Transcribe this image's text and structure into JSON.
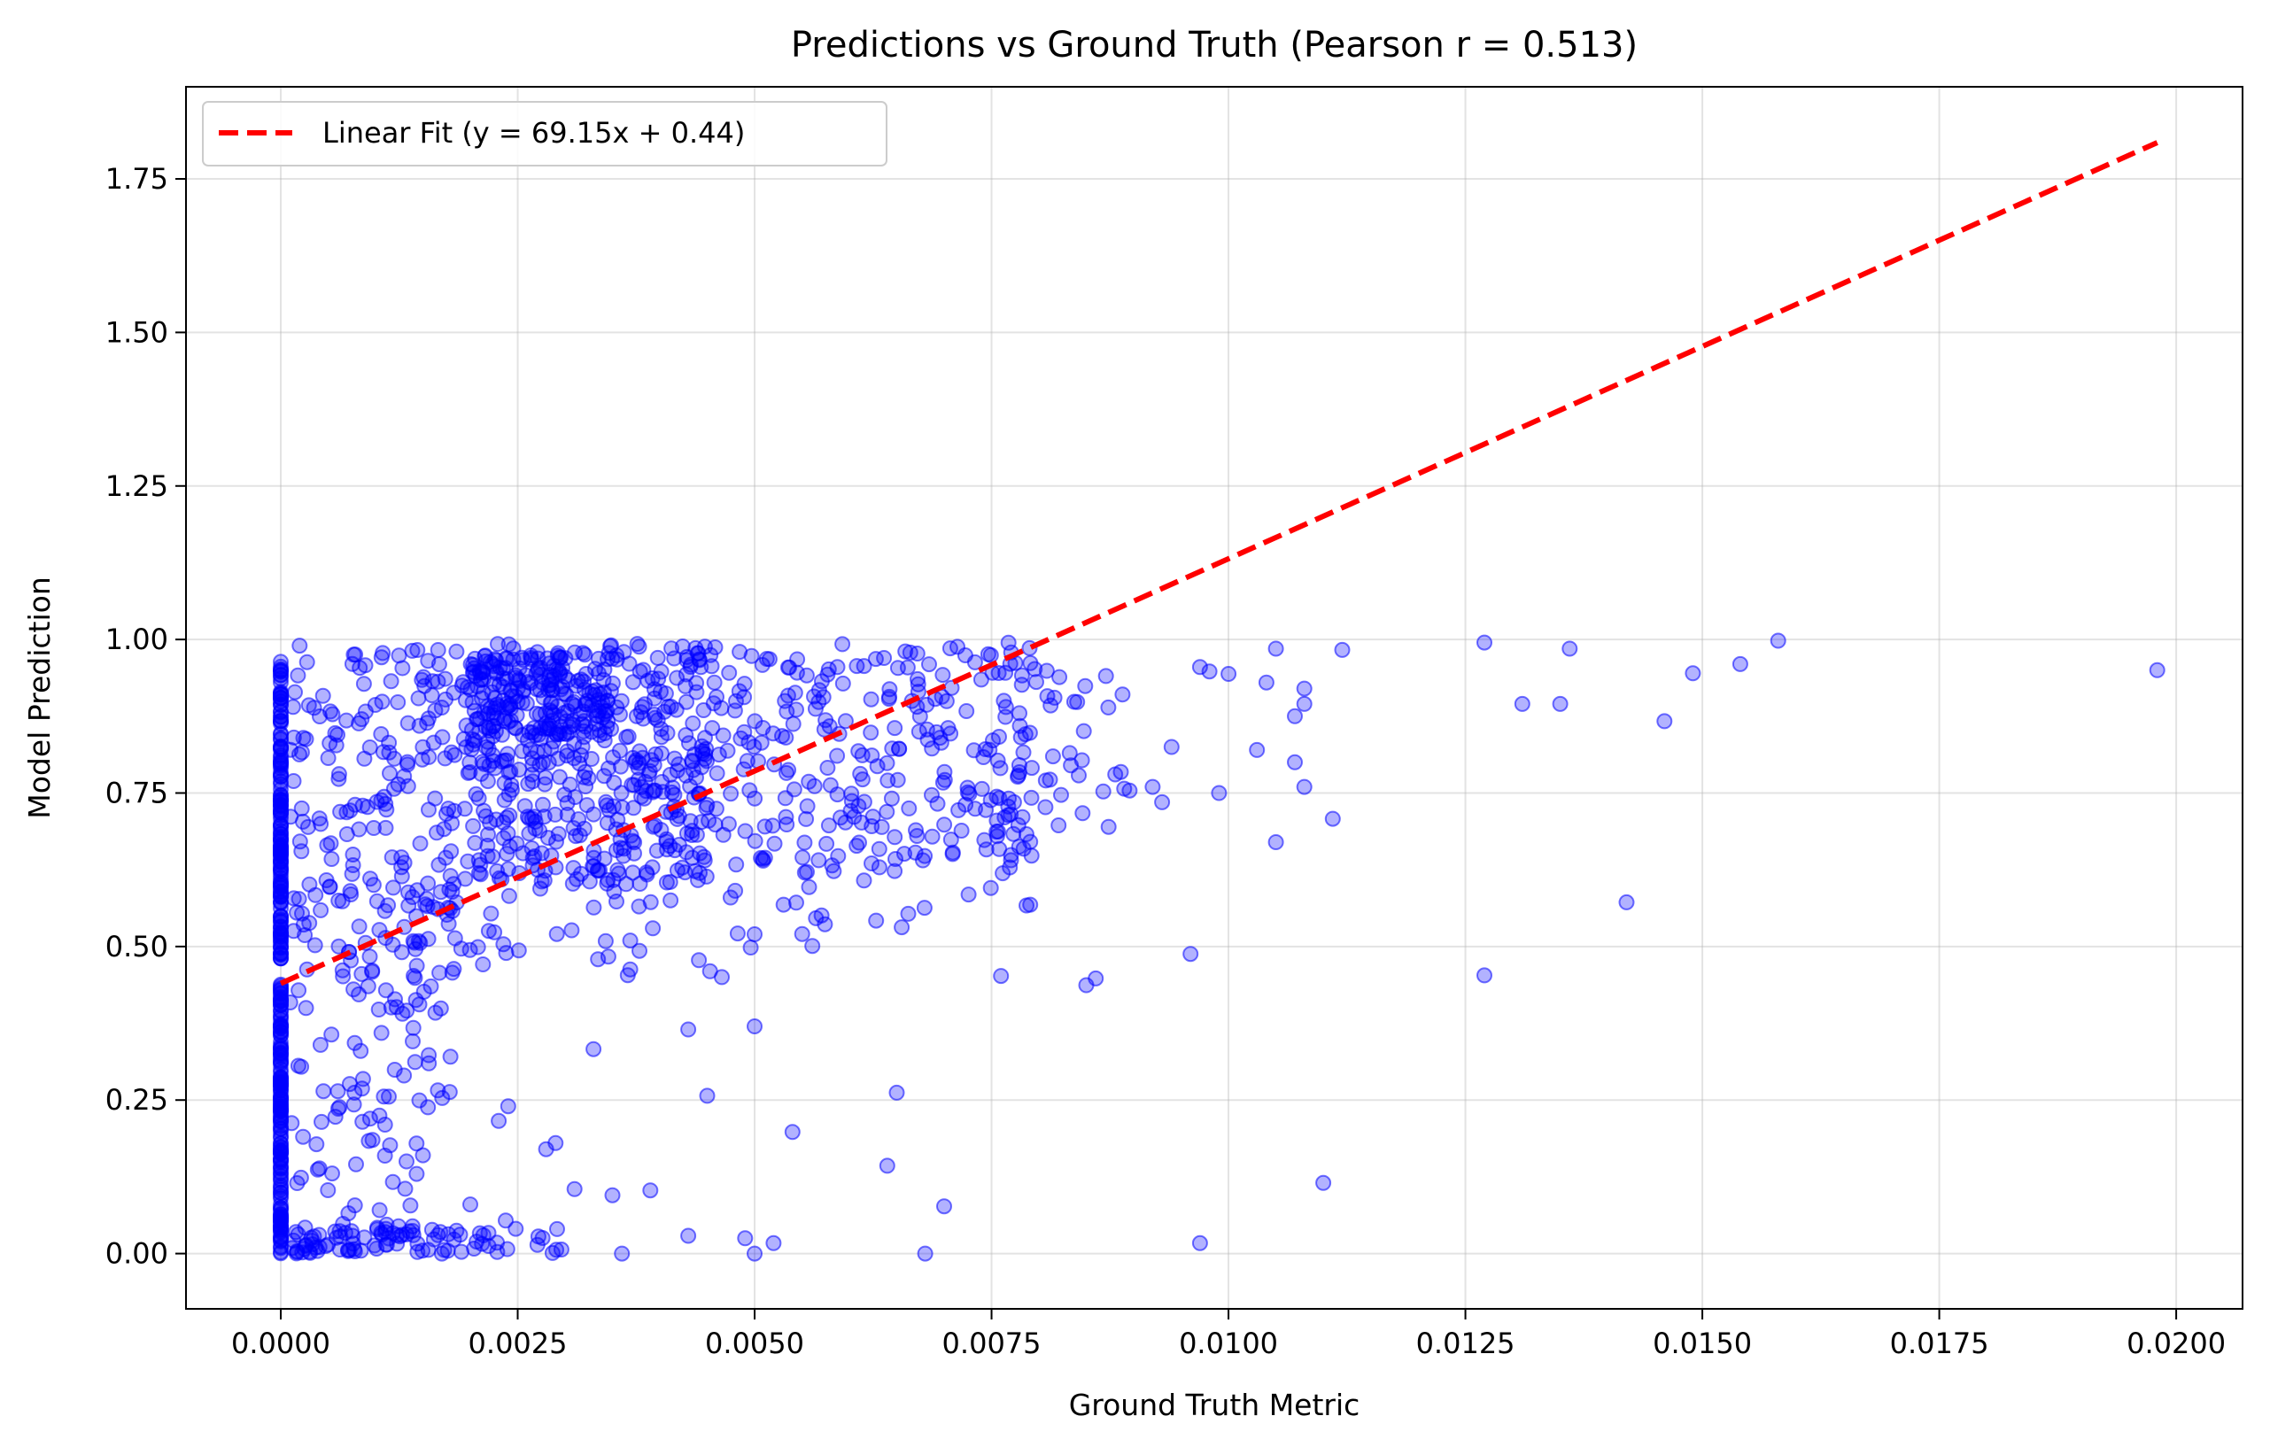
{
  "chart_data": {
    "type": "scatter",
    "title": "Predictions vs Ground Truth (Pearson r = 0.513)",
    "xlabel": "Ground Truth Metric",
    "ylabel": "Model Prediction",
    "xlim": [
      -0.001,
      0.0207
    ],
    "ylim": [
      -0.09,
      1.9
    ],
    "xticks": [
      0.0,
      0.0025,
      0.005,
      0.0075,
      0.01,
      0.0125,
      0.015,
      0.0175,
      0.02
    ],
    "xtick_labels": [
      "0.0000",
      "0.0025",
      "0.0050",
      "0.0075",
      "0.0100",
      "0.0125",
      "0.0150",
      "0.0175",
      "0.0200"
    ],
    "yticks": [
      0.0,
      0.25,
      0.5,
      0.75,
      1.0,
      1.25,
      1.5,
      1.75
    ],
    "ytick_labels": [
      "0.00",
      "0.25",
      "0.50",
      "0.75",
      "1.00",
      "1.25",
      "1.50",
      "1.75"
    ],
    "grid": true,
    "legend_position": "top-left",
    "fit": {
      "name": "Linear Fit (y = 69.15x + 0.44)",
      "slope": 69.15,
      "intercept": 0.44,
      "x_range": [
        0.0,
        0.0198
      ],
      "color": "#ff0000"
    },
    "scatter_color": "#0000ff",
    "outliers": [
      [
        0.0127,
        0.995
      ],
      [
        0.0131,
        0.895
      ],
      [
        0.0136,
        0.985
      ],
      [
        0.0135,
        0.895
      ],
      [
        0.0142,
        0.572
      ],
      [
        0.0146,
        0.867
      ],
      [
        0.0149,
        0.945
      ],
      [
        0.0154,
        0.96
      ],
      [
        0.0158,
        0.998
      ],
      [
        0.0198,
        0.95
      ],
      [
        0.0127,
        0.453
      ],
      [
        0.0112,
        0.983
      ],
      [
        0.0111,
        0.708
      ],
      [
        0.011,
        0.115
      ],
      [
        0.0097,
        0.017
      ],
      [
        0.0096,
        0.488
      ],
      [
        0.0085,
        0.437
      ],
      [
        0.0086,
        0.448
      ],
      [
        0.0076,
        0.452
      ],
      [
        0.0105,
        0.67
      ],
      [
        0.0103,
        0.82
      ],
      [
        0.0107,
        0.8
      ],
      [
        0.0108,
        0.76
      ],
      [
        0.0099,
        0.75
      ],
      [
        0.0092,
        0.76
      ],
      [
        0.0093,
        0.735
      ],
      [
        0.0089,
        0.757
      ],
      [
        0.0094,
        0.825
      ],
      [
        0.0097,
        0.955
      ],
      [
        0.0098,
        0.948
      ],
      [
        0.01,
        0.944
      ],
      [
        0.0104,
        0.93
      ],
      [
        0.0105,
        0.985
      ],
      [
        0.0107,
        0.875
      ],
      [
        0.0108,
        0.92
      ],
      [
        0.0108,
        0.895
      ],
      [
        0.0064,
        0.143
      ],
      [
        0.0065,
        0.262
      ],
      [
        0.007,
        0.077
      ],
      [
        0.0068,
        0.0
      ],
      [
        0.0054,
        0.198
      ],
      [
        0.0052,
        0.017
      ],
      [
        0.005,
        0.0
      ],
      [
        0.0049,
        0.025
      ],
      [
        0.0045,
        0.257
      ],
      [
        0.0043,
        0.029
      ],
      [
        0.0043,
        0.365
      ],
      [
        0.005,
        0.37
      ],
      [
        0.005,
        0.52
      ],
      [
        0.0036,
        0.0
      ],
      [
        0.0039,
        0.103
      ],
      [
        0.0035,
        0.095
      ],
      [
        0.0033,
        0.333
      ],
      [
        0.0029,
        0.18
      ],
      [
        0.0028,
        0.17
      ],
      [
        0.0031,
        0.105
      ],
      [
        0.0024,
        0.24
      ],
      [
        0.0023,
        0.216
      ],
      [
        0.002,
        0.08
      ],
      [
        0.0017,
        0.0
      ],
      [
        0.0014,
        0.03
      ],
      [
        0.0015,
        0.16
      ],
      [
        0.0013,
        0.29
      ],
      [
        0.0011,
        0.21
      ]
    ],
    "clusters": [
      {
        "x": [
          0.0,
          0.0
        ],
        "y": [
          0.0,
          0.44
        ],
        "n": 160,
        "seed": 11
      },
      {
        "x": [
          0.0,
          0.0
        ],
        "y": [
          0.48,
          0.965
        ],
        "n": 160,
        "seed": 12
      },
      {
        "x": [
          0.0001,
          0.0019
        ],
        "y": [
          0.0,
          0.04
        ],
        "n": 70,
        "seed": 13
      },
      {
        "x": [
          0.0001,
          0.0018
        ],
        "y": [
          0.04,
          0.45
        ],
        "n": 85,
        "seed": 14
      },
      {
        "x": [
          0.0001,
          0.0019
        ],
        "y": [
          0.45,
          0.99
        ],
        "n": 210,
        "seed": 15
      },
      {
        "x": [
          0.0019,
          0.0045
        ],
        "y": [
          0.6,
          0.995
        ],
        "n": 430,
        "seed": 16
      },
      {
        "x": [
          0.002,
          0.0035
        ],
        "y": [
          0.84,
          0.98
        ],
        "n": 160,
        "seed": 17
      },
      {
        "x": [
          0.0045,
          0.008
        ],
        "y": [
          0.62,
          0.995
        ],
        "n": 250,
        "seed": 18
      },
      {
        "x": [
          0.0019,
          0.005
        ],
        "y": [
          0.45,
          0.6
        ],
        "n": 35,
        "seed": 19
      },
      {
        "x": [
          0.005,
          0.008
        ],
        "y": [
          0.5,
          0.72
        ],
        "n": 25,
        "seed": 20
      },
      {
        "x": [
          0.0075,
          0.009
        ],
        "y": [
          0.68,
          0.97
        ],
        "n": 45,
        "seed": 21
      },
      {
        "x": [
          0.0019,
          0.0032
        ],
        "y": [
          0.0,
          0.06
        ],
        "n": 20,
        "seed": 22
      }
    ]
  }
}
